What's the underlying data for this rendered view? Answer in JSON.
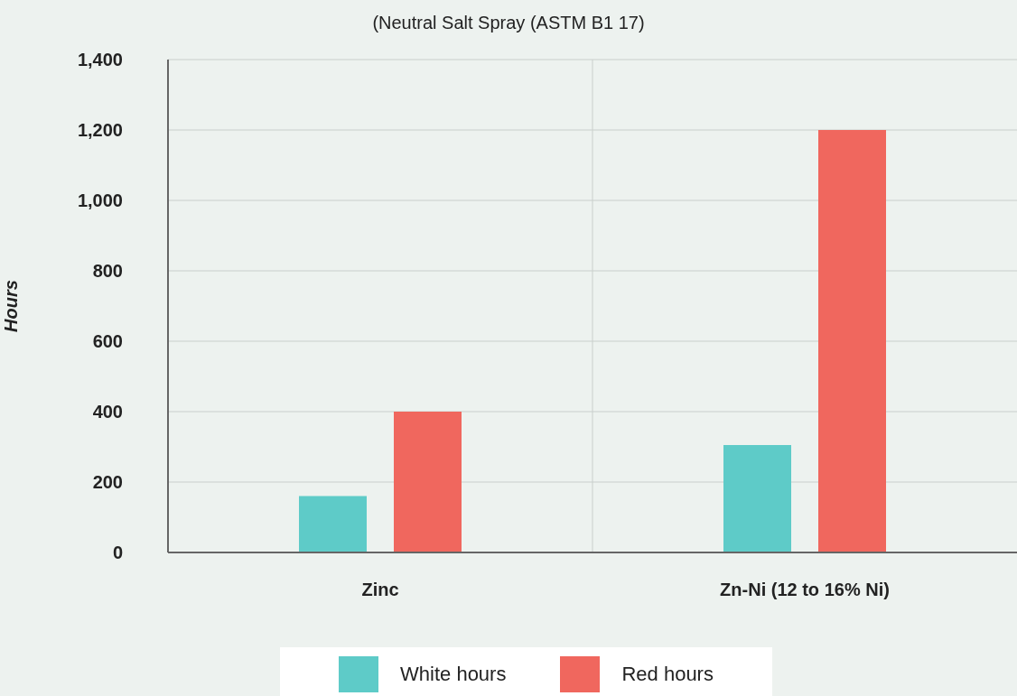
{
  "chart_data": {
    "type": "bar",
    "title": "(Neutral Salt Spray (ASTM B1 17)",
    "ylabel": "Hours",
    "categories": [
      "Zinc",
      "Zn-Ni (12 to 16% Ni)"
    ],
    "series": [
      {
        "name": "White hours",
        "color": "#5ecbc8",
        "values": [
          160,
          305
        ]
      },
      {
        "name": "Red hours",
        "color": "#f0675e",
        "values": [
          400,
          1200
        ]
      }
    ],
    "ylim": [
      0,
      1400
    ],
    "yticks": [
      0,
      200,
      400,
      600,
      800,
      {
        "value": 1000,
        "label": "1,000"
      },
      {
        "value": 1200,
        "label": "1,200"
      },
      {
        "value": 1400,
        "label": "1,400"
      }
    ],
    "grid": true,
    "legend": "bottom"
  }
}
